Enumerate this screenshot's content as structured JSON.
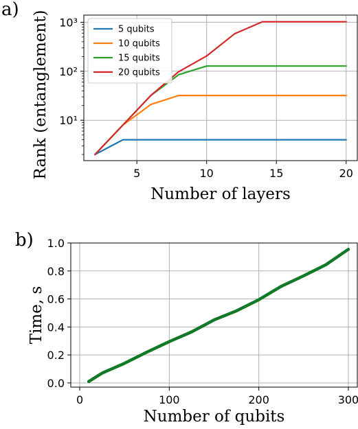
{
  "chart_data": [
    {
      "panel_label": "a)",
      "type": "line",
      "xlabel": "Number of layers",
      "ylabel": "Rank (entanglement)",
      "xlim": [
        1.2,
        20.8
      ],
      "ylim": [
        1.5,
        1400
      ],
      "y_scale": "log",
      "x_ticks": [
        5,
        10,
        15,
        20
      ],
      "x_tick_labels": [
        "5",
        "10",
        "15",
        "20"
      ],
      "y_ticks": [
        10,
        100,
        1000
      ],
      "y_tick_labels": [
        "10¹",
        "10²",
        "10³"
      ],
      "grid": true,
      "legend": "top-left",
      "series": [
        {
          "name": "5 qubits",
          "color": "#1f77b4",
          "x": [
            2,
            4,
            6,
            8,
            10,
            12,
            14,
            16,
            18,
            20
          ],
          "y": [
            2,
            4,
            4,
            4,
            4,
            4,
            4,
            4,
            4,
            4
          ]
        },
        {
          "name": "10 qubits",
          "color": "#ff7f0e",
          "x": [
            2,
            4,
            6,
            8,
            10,
            12,
            14,
            16,
            18,
            20
          ],
          "y": [
            2,
            8,
            21,
            32,
            32,
            32,
            32,
            32,
            32,
            32
          ]
        },
        {
          "name": "15 qubits",
          "color": "#2ca02c",
          "x": [
            2,
            4,
            6,
            8,
            10,
            12,
            14,
            16,
            18,
            20
          ],
          "y": [
            2,
            8,
            32,
            85,
            128,
            128,
            128,
            128,
            128,
            128
          ]
        },
        {
          "name": "20 qubits",
          "color": "#d62728",
          "x": [
            2,
            4,
            6,
            8,
            10,
            12,
            14,
            16,
            18,
            20
          ],
          "y": [
            2,
            8,
            32,
            98,
            205,
            580,
            1024,
            1024,
            1024,
            1024
          ]
        }
      ]
    },
    {
      "panel_label": "b)",
      "type": "line",
      "xlabel": "Number of qubits",
      "ylabel": "Time, s",
      "xlim": [
        -10,
        310
      ],
      "ylim": [
        -0.03,
        1.0
      ],
      "x_ticks": [
        0,
        100,
        200,
        300
      ],
      "x_tick_labels": [
        "0",
        "100",
        "200",
        "300"
      ],
      "y_ticks": [
        0,
        0.2,
        0.4,
        0.6,
        0.8,
        1.0
      ],
      "y_tick_labels": [
        "0.0",
        "0.2",
        "0.4",
        "0.6",
        "0.8",
        "1.0"
      ],
      "grid": true,
      "series": [
        {
          "color": "#127a26",
          "x": [
            10,
            25,
            50,
            75,
            100,
            125,
            150,
            175,
            200,
            225,
            250,
            275,
            300
          ],
          "y": [
            0.01,
            0.07,
            0.14,
            0.22,
            0.295,
            0.365,
            0.45,
            0.515,
            0.595,
            0.69,
            0.765,
            0.845,
            0.955
          ]
        }
      ]
    }
  ]
}
